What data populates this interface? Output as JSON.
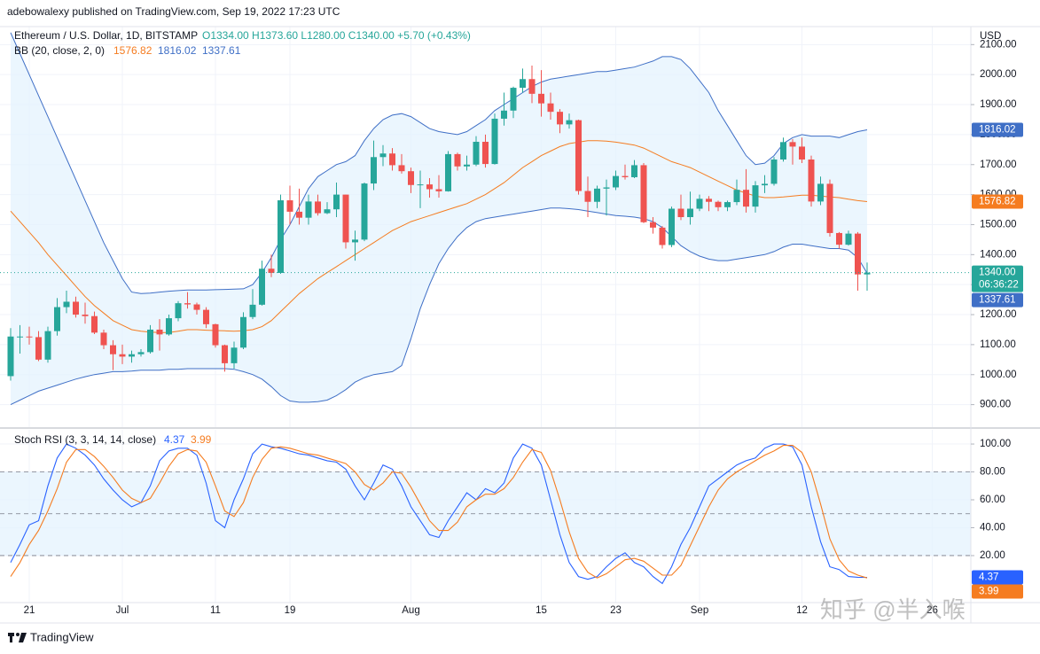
{
  "header": {
    "publisher": "adebowalexy published on TradingView.com, Sep 19, 2022 17:23 UTC"
  },
  "footer": {
    "brand": "TradingView"
  },
  "watermark": "知乎 @半入喉",
  "chart_data": [
    {
      "type": "candlestick",
      "title": "Ethereum / U.S. Dollar, 1D, BITSTAMP",
      "ohlc_text": "O1334.00  H1373.60  L1280.00  C1340.00  +5.70 (+0.43%)",
      "indicator": "BB (20, close, 2, 0)",
      "axis_unit": "USD",
      "last_price_label": "1340.00",
      "countdown": "06:36:22",
      "up_color": "#26a69a",
      "down_color": "#ef5350",
      "categories": [
        null,
        null,
        "21",
        null,
        null,
        null,
        null,
        null,
        null,
        null,
        null,
        null,
        "Jul",
        null,
        null,
        null,
        null,
        null,
        null,
        null,
        null,
        null,
        "11",
        null,
        null,
        null,
        null,
        null,
        null,
        null,
        "19",
        null,
        null,
        null,
        null,
        null,
        null,
        null,
        null,
        null,
        null,
        null,
        null,
        "Aug",
        null,
        null,
        null,
        null,
        null,
        null,
        null,
        null,
        null,
        null,
        null,
        null,
        null,
        "15",
        null,
        null,
        null,
        null,
        null,
        null,
        null,
        "23",
        null,
        null,
        null,
        null,
        null,
        null,
        null,
        null,
        "Sep",
        null,
        null,
        null,
        null,
        null,
        null,
        null,
        null,
        null,
        null,
        "12",
        null,
        null,
        null,
        null,
        null,
        null,
        null,
        null,
        null,
        null,
        null,
        null,
        null,
        "26"
      ],
      "open": [
        995,
        1127,
        1127,
        1125,
        1050,
        1145,
        1225,
        1243,
        1200,
        1195,
        1140,
        1098,
        1068,
        1060,
        1068,
        1075,
        1150,
        1134,
        1188,
        1238,
        1234,
        1216,
        1168,
        1098,
        1038,
        1090,
        1192,
        1233,
        1353,
        1339,
        1581,
        1543,
        1523,
        1577,
        1538,
        1551,
        1600,
        1441,
        1450,
        1637,
        1725,
        1737,
        1698,
        1678,
        1632,
        1634,
        1618,
        1611,
        1735,
        1694,
        1700,
        1776,
        1702,
        1853,
        1880,
        1956,
        1985,
        1936,
        1904,
        1876,
        1834,
        1848,
        1612,
        1576,
        1620,
        1624,
        1662,
        1658,
        1698,
        1508,
        1490,
        1432,
        1553,
        1525,
        1553,
        1586,
        1576,
        1558,
        1575,
        1616,
        1560,
        1631,
        1636,
        1717,
        1775,
        1760,
        1717,
        1577,
        1636,
        1472,
        1433,
        1470,
        1334,
        null,
        null,
        null,
        null,
        null,
        null,
        null
      ],
      "high": [
        1155,
        1165,
        1160,
        1145,
        1160,
        1255,
        1280,
        1260,
        1240,
        1210,
        1150,
        1115,
        1100,
        1080,
        1085,
        1165,
        1185,
        1200,
        1245,
        1275,
        1240,
        1225,
        1170,
        1100,
        1110,
        1208,
        1285,
        1380,
        1400,
        1600,
        1630,
        1620,
        1600,
        1600,
        1575,
        1640,
        1600,
        1480,
        1640,
        1780,
        1765,
        1755,
        1735,
        1690,
        1680,
        1655,
        1665,
        1745,
        1740,
        1730,
        1795,
        1800,
        1870,
        1940,
        1960,
        2020,
        2030,
        2015,
        1940,
        1885,
        1870,
        1850,
        1660,
        1630,
        1650,
        1680,
        1700,
        1715,
        1705,
        1525,
        1495,
        1560,
        1600,
        1610,
        1600,
        1595,
        1580,
        1580,
        1650,
        1685,
        1645,
        1665,
        1725,
        1790,
        1785,
        1790,
        1730,
        1660,
        1650,
        1475,
        1480,
        1475,
        1373.6,
        null,
        null,
        null,
        null,
        null,
        null,
        null
      ],
      "low": [
        980,
        1070,
        1100,
        1045,
        1040,
        1130,
        1205,
        1190,
        1170,
        1135,
        1085,
        1015,
        1035,
        1040,
        1060,
        1070,
        1080,
        1130,
        1178,
        1220,
        1200,
        1155,
        1090,
        1010,
        1020,
        1085,
        1185,
        1230,
        1325,
        1336,
        1500,
        1500,
        1500,
        1530,
        1535,
        1525,
        1420,
        1380,
        1445,
        1615,
        1695,
        1680,
        1670,
        1605,
        1555,
        1590,
        1590,
        1610,
        1680,
        1680,
        1695,
        1690,
        1700,
        1830,
        1855,
        1940,
        1905,
        1860,
        1850,
        1805,
        1820,
        1600,
        1525,
        1555,
        1530,
        1615,
        1650,
        1655,
        1505,
        1470,
        1420,
        1425,
        1515,
        1500,
        1545,
        1545,
        1545,
        1545,
        1565,
        1540,
        1540,
        1605,
        1630,
        1710,
        1700,
        1705,
        1560,
        1565,
        1460,
        1420,
        1430,
        1280,
        1280,
        null,
        null,
        null,
        null,
        null,
        null,
        null
      ],
      "close": [
        1127,
        1127,
        1125,
        1050,
        1145,
        1225,
        1243,
        1200,
        1195,
        1140,
        1098,
        1068,
        1060,
        1068,
        1075,
        1150,
        1134,
        1188,
        1238,
        1234,
        1216,
        1168,
        1098,
        1038,
        1090,
        1192,
        1233,
        1353,
        1339,
        1581,
        1543,
        1523,
        1577,
        1538,
        1551,
        1600,
        1441,
        1450,
        1637,
        1725,
        1737,
        1698,
        1678,
        1632,
        1634,
        1618,
        1611,
        1735,
        1694,
        1700,
        1776,
        1702,
        1853,
        1880,
        1956,
        1985,
        1936,
        1904,
        1876,
        1834,
        1848,
        1612,
        1576,
        1620,
        1624,
        1662,
        1658,
        1698,
        1508,
        1490,
        1432,
        1553,
        1525,
        1553,
        1586,
        1576,
        1558,
        1575,
        1616,
        1560,
        1631,
        1636,
        1717,
        1775,
        1760,
        1717,
        1577,
        1636,
        1472,
        1433,
        1470,
        1334,
        1340,
        null,
        null,
        null,
        null,
        null,
        null,
        null
      ],
      "series": [
        {
          "color": "#f57c20",
          "values": [
            1545,
            1510,
            1475,
            1440,
            1400,
            1365,
            1330,
            1295,
            1260,
            1230,
            1205,
            1180,
            1165,
            1150,
            1145,
            1142,
            1140,
            1140,
            1145,
            1150,
            1150,
            1148,
            1147,
            1146,
            1145,
            1146,
            1150,
            1160,
            1180,
            1210,
            1240,
            1270,
            1295,
            1320,
            1340,
            1360,
            1380,
            1400,
            1420,
            1440,
            1460,
            1480,
            1495,
            1510,
            1520,
            1530,
            1540,
            1550,
            1560,
            1570,
            1585,
            1600,
            1620,
            1640,
            1665,
            1690,
            1710,
            1730,
            1745,
            1760,
            1770,
            1775,
            1780,
            1780,
            1778,
            1775,
            1770,
            1765,
            1755,
            1740,
            1725,
            1710,
            1700,
            1690,
            1675,
            1660,
            1645,
            1630,
            1615,
            1605,
            1595,
            1590,
            1590,
            1592,
            1595,
            1598,
            1598,
            1595,
            1592,
            1590,
            1585,
            1580,
            1576.82,
            null,
            null,
            null,
            null,
            null,
            null,
            null
          ]
        },
        {
          "color": "#3f6fc6",
          "values": [
            2140,
            2070,
            2000,
            1930,
            1860,
            1790,
            1720,
            1650,
            1580,
            1510,
            1440,
            1380,
            1320,
            1275,
            1270,
            1272,
            1275,
            1278,
            1280,
            1282,
            1282,
            1282,
            1283,
            1284,
            1285,
            1286,
            1300,
            1340,
            1390,
            1450,
            1500,
            1560,
            1620,
            1660,
            1680,
            1700,
            1710,
            1730,
            1780,
            1820,
            1850,
            1865,
            1870,
            1860,
            1840,
            1820,
            1810,
            1805,
            1800,
            1810,
            1830,
            1850,
            1880,
            1900,
            1920,
            1940,
            1960,
            1975,
            1985,
            1990,
            1995,
            2000,
            2005,
            2010,
            2010,
            2015,
            2020,
            2025,
            2035,
            2045,
            2060,
            2060,
            2050,
            2020,
            1980,
            1940,
            1880,
            1830,
            1780,
            1730,
            1700,
            1705,
            1730,
            1770,
            1790,
            1800,
            1795,
            1795,
            1795,
            1790,
            1800,
            1810,
            1816.02,
            null,
            null,
            null,
            null,
            null,
            null,
            null
          ]
        },
        {
          "color": "#3f6fc6",
          "values": [
            900,
            915,
            930,
            945,
            955,
            965,
            975,
            985,
            993,
            1000,
            1005,
            1010,
            1010,
            1012,
            1015,
            1015,
            1015,
            1018,
            1018,
            1020,
            1020,
            1020,
            1020,
            1020,
            1018,
            1010,
            1000,
            985,
            960,
            930,
            912,
            908,
            908,
            910,
            915,
            930,
            950,
            975,
            990,
            1000,
            1005,
            1010,
            1030,
            1120,
            1220,
            1300,
            1370,
            1420,
            1460,
            1490,
            1510,
            1520,
            1525,
            1530,
            1535,
            1540,
            1545,
            1550,
            1555,
            1555,
            1553,
            1550,
            1545,
            1540,
            1535,
            1530,
            1528,
            1525,
            1520,
            1510,
            1490,
            1460,
            1430,
            1410,
            1395,
            1385,
            1380,
            1380,
            1385,
            1390,
            1395,
            1400,
            1410,
            1425,
            1435,
            1435,
            1430,
            1425,
            1420,
            1420,
            1415,
            1390,
            1337.61,
            null,
            null,
            null,
            null,
            null,
            null,
            null
          ]
        }
      ],
      "band_fill": "#e3f2fd",
      "ylim": [
        825,
        2160
      ],
      "yticks": [
        {
          "value": 900,
          "label": "900.00"
        },
        {
          "value": 1000,
          "label": "1000.00"
        },
        {
          "value": 1100,
          "label": "1100.00"
        },
        {
          "value": 1200,
          "label": "1200.00"
        },
        {
          "value": 1300,
          "label": "1300.00"
        },
        {
          "value": 1400,
          "label": "1400.00"
        },
        {
          "value": 1500,
          "label": "1500.00"
        },
        {
          "value": 1600,
          "label": "1600.00"
        },
        {
          "value": 1700,
          "label": "1700.00"
        },
        {
          "value": 1800,
          "label": "1800.00"
        },
        {
          "value": 1900,
          "label": "1900.00"
        },
        {
          "value": 2000,
          "label": "2000.00"
        },
        {
          "value": 2100,
          "label": "2100.00"
        }
      ],
      "grid": true
    },
    {
      "type": "line",
      "title": "Stoch RSI (3, 3, 14, 14, close)",
      "series": [
        {
          "color": "#2962ff",
          "values": [
            15,
            28,
            42,
            45,
            70,
            90,
            100,
            97,
            92,
            85,
            75,
            67,
            60,
            55,
            58,
            70,
            88,
            95,
            97,
            97,
            92,
            72,
            45,
            40,
            60,
            75,
            93,
            100,
            98,
            97,
            95,
            93,
            92,
            90,
            88,
            87,
            82,
            70,
            60,
            72,
            85,
            82,
            70,
            55,
            45,
            35,
            33,
            45,
            55,
            65,
            60,
            68,
            65,
            72,
            90,
            100,
            97,
            85,
            60,
            35,
            15,
            5,
            3,
            5,
            12,
            18,
            22,
            15,
            12,
            5,
            0,
            12,
            28,
            40,
            55,
            70,
            75,
            80,
            85,
            88,
            90,
            97,
            100,
            100,
            98,
            85,
            55,
            30,
            12,
            10,
            5,
            4.5,
            4.37,
            null,
            null,
            null,
            null,
            null,
            null,
            null
          ]
        },
        {
          "color": "#f57c20",
          "values": [
            5,
            15,
            28,
            38,
            52,
            68,
            87,
            96,
            96,
            91,
            84,
            76,
            67,
            61,
            58,
            61,
            72,
            84,
            93,
            96,
            95,
            87,
            70,
            52,
            48,
            58,
            76,
            89,
            97,
            98,
            97,
            95,
            93,
            92,
            90,
            88,
            86,
            80,
            71,
            67,
            72,
            80,
            79,
            69,
            57,
            45,
            38,
            38,
            44,
            55,
            60,
            64,
            64,
            68,
            76,
            87,
            96,
            94,
            81,
            60,
            37,
            18,
            8,
            4,
            7,
            12,
            17,
            18,
            16,
            11,
            6,
            6,
            13,
            27,
            41,
            55,
            67,
            75,
            80,
            84,
            88,
            92,
            95,
            99,
            99,
            94,
            80,
            57,
            32,
            17,
            9,
            6,
            3.99,
            null,
            null,
            null,
            null,
            null,
            null,
            null
          ]
        }
      ],
      "hlines": [
        80,
        50,
        20
      ],
      "band_fill": "#e3f2fd",
      "ylim": [
        -13.7,
        110.2
      ],
      "yticks": [
        {
          "value": 20,
          "label": "20.00"
        },
        {
          "value": 40,
          "label": "40.00"
        },
        {
          "value": 60,
          "label": "60.00"
        },
        {
          "value": 80,
          "label": "80.00"
        },
        {
          "value": 100,
          "label": "100.00"
        }
      ],
      "grid": true
    }
  ]
}
